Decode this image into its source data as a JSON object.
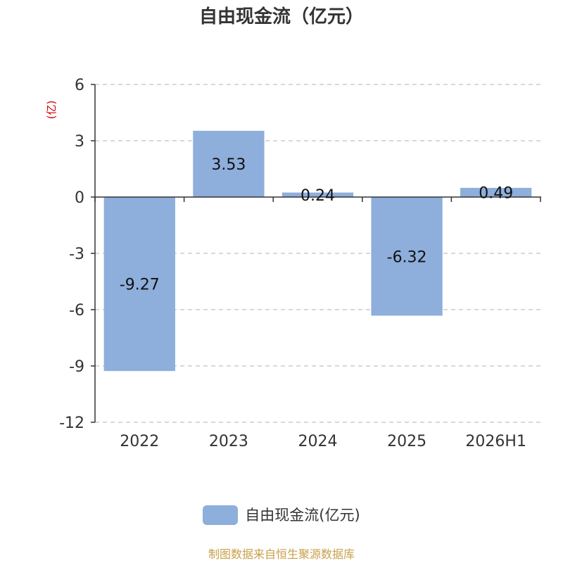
{
  "chart_data": {
    "type": "bar",
    "title": "自由现金流（亿元）",
    "ylabel": "(亿)",
    "categories": [
      "2022",
      "2023",
      "2024",
      "2025",
      "2026H1"
    ],
    "series": [
      {
        "name": "自由现金流(亿元)",
        "values": [
          -9.27,
          3.53,
          0.24,
          -6.32,
          0.49
        ]
      }
    ],
    "ylim": [
      -12,
      6
    ],
    "yticks": [
      6,
      3,
      0,
      -3,
      -6,
      -9,
      -12
    ],
    "grid": true,
    "legend_position": "bottom",
    "data_labels": [
      "-9.27",
      "3.53",
      "0.24",
      "-6.32",
      "0.49"
    ],
    "bar_color": "#8eaedb",
    "ylabel_color": "#cc0000",
    "source": "制图数据来自恒生聚源数据库"
  }
}
